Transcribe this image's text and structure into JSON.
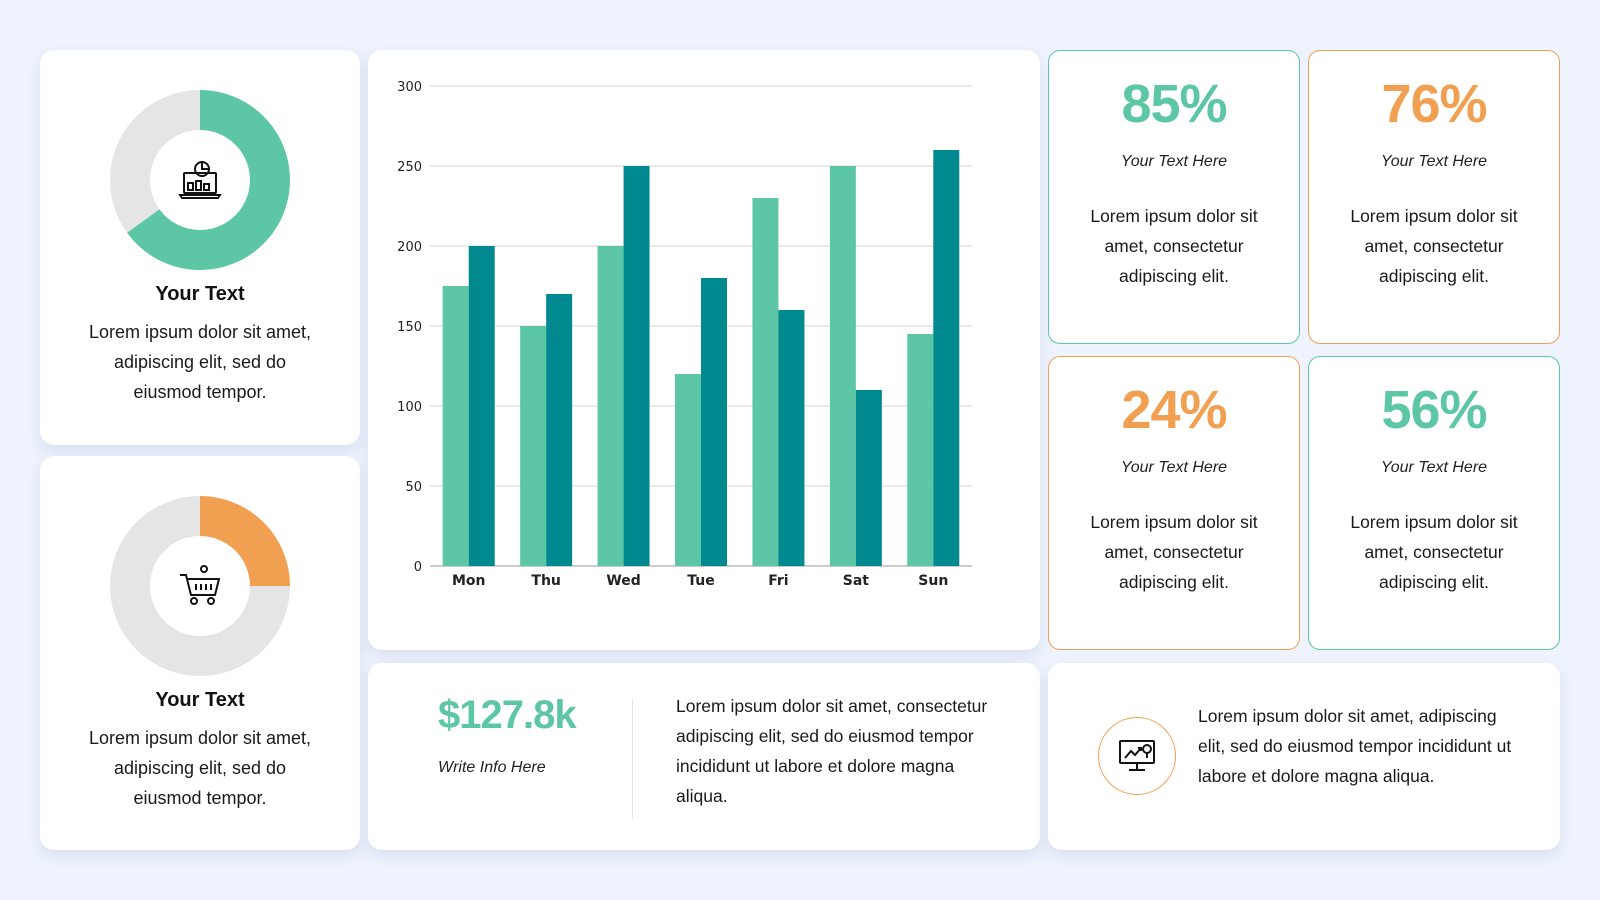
{
  "donuts": [
    {
      "percent": 65,
      "color": "#5cc6a6",
      "icon": "laptop-chart-icon",
      "title": "Your Text",
      "body": "Lorem ipsum dolor sit amet, adipiscing elit, sed do eiusmod tempor."
    },
    {
      "percent": 25,
      "color": "#f0a050",
      "icon": "shopping-cart-icon",
      "title": "Your Text",
      "body": "Lorem ipsum dolor sit amet, adipiscing elit, sed do eiusmod tempor."
    }
  ],
  "chart_data": {
    "type": "bar",
    "categories": [
      "Mon",
      "Thu",
      "Wed",
      "Tue",
      "Fri",
      "Sat",
      "Sun"
    ],
    "series": [
      {
        "values": [
          175,
          150,
          200,
          120,
          230,
          250,
          145
        ],
        "color": "#5cc6a6"
      },
      {
        "values": [
          200,
          170,
          250,
          180,
          160,
          110,
          260
        ],
        "color": "#008a8f"
      }
    ],
    "yticks": [
      "0",
      "50",
      "100",
      "150",
      "200",
      "250",
      "300"
    ],
    "ylim": [
      0,
      300
    ],
    "grid": true
  },
  "stats": [
    {
      "value": "85%",
      "label": "Your Text Here",
      "body": "Lorem ipsum dolor sit amet, consectetur adipiscing elit.",
      "color": "#5cc6a6"
    },
    {
      "value": "76%",
      "label": "Your Text Here",
      "body": "Lorem ipsum dolor sit amet, consectetur adipiscing elit.",
      "color": "#f0a050"
    },
    {
      "value": "24%",
      "label": "Your Text Here",
      "body": "Lorem ipsum dolor sit amet, consectetur adipiscing elit.",
      "color": "#f0a050"
    },
    {
      "value": "56%",
      "label": "Your Text Here",
      "body": "Lorem ipsum dolor sit amet, consectetur adipiscing elit.",
      "color": "#5cc6a6"
    }
  ],
  "money": {
    "value": "$127.8k",
    "label": "Write Info Here",
    "body": "Lorem ipsum dolor sit amet, consectetur adipiscing elit, sed do eiusmod tempor incididunt ut labore et dolore magna aliqua."
  },
  "info": {
    "icon": "monitor-analytics-icon",
    "body": "Lorem ipsum dolor sit amet, adipiscing elit, sed do eiusmod tempor incididunt ut labore et dolore magna aliqua."
  }
}
